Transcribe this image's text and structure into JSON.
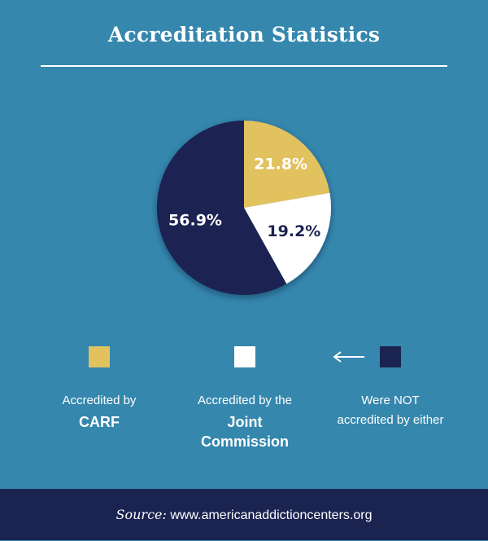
{
  "title": "Accreditation Statistics",
  "colors": {
    "background": "#3587ad",
    "carf": "#e2c25e",
    "joint": "#ffffff",
    "neither": "#1b2451",
    "footer": "#1b2451"
  },
  "chart_data": {
    "type": "pie",
    "title": "Accreditation Statistics",
    "categories": [
      "Accredited by CARF",
      "Accredited by the Joint Commission",
      "Were NOT accredited by either"
    ],
    "values": [
      21.8,
      19.2,
      56.9
    ],
    "labels": [
      "21.8%",
      "19.2%",
      "56.9%"
    ],
    "colors": [
      "#e2c25e",
      "#ffffff",
      "#1b2451"
    ],
    "label_colors": [
      "#ffffff",
      "#1b2451",
      "#ffffff"
    ],
    "legend_position": "bottom"
  },
  "legend": {
    "carf": {
      "line1": "Accredited by",
      "line2": "CARF"
    },
    "joint": {
      "line1": "Accredited by the",
      "line2": "Joint",
      "line3": "Commission"
    },
    "neither": {
      "line1": "Were NOT",
      "line2": "accredited by either"
    }
  },
  "footer": {
    "source_label": "Source:",
    "source_url": "www.americanaddictioncenters.org"
  }
}
